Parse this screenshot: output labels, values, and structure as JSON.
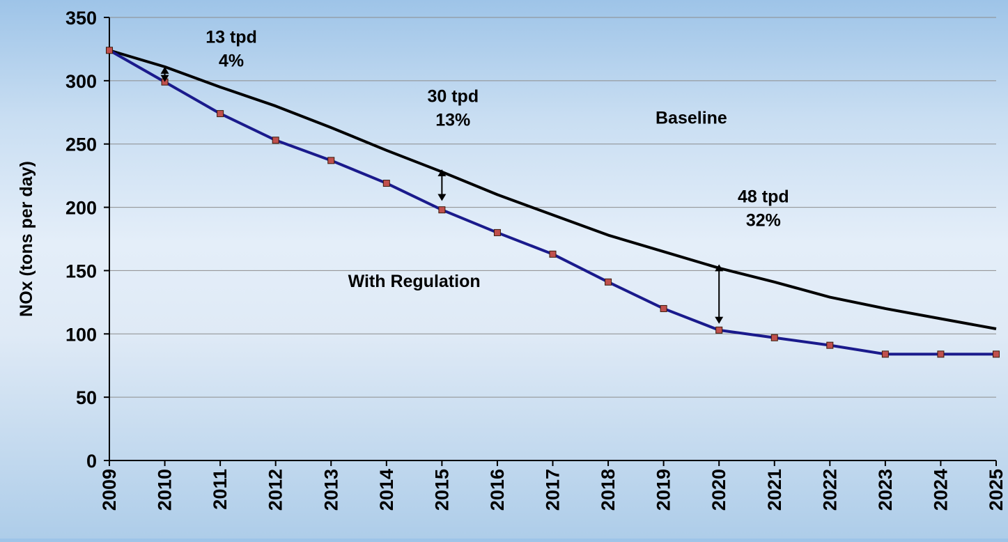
{
  "chart_data": {
    "type": "line",
    "title": "",
    "xlabel": "",
    "ylabel": "NOx (tons per day)",
    "ylim": [
      0,
      350
    ],
    "yticks": [
      0,
      50,
      100,
      150,
      200,
      250,
      300,
      350
    ],
    "x": [
      "2009",
      "2010",
      "2011",
      "2012",
      "2013",
      "2014",
      "2015",
      "2016",
      "2017",
      "2018",
      "2019",
      "2020",
      "2021",
      "2022",
      "2023",
      "2024",
      "2025"
    ],
    "grid": true,
    "series": [
      {
        "name": "Baseline",
        "color": "#000000",
        "markers": false,
        "values": [
          324,
          311,
          295,
          280,
          263,
          245,
          228,
          210,
          194,
          178,
          165,
          152,
          141,
          129,
          120,
          112,
          104
        ]
      },
      {
        "name": "With Regulation",
        "color": "#1a1a8c",
        "marker_color": "#c0504d",
        "markers": true,
        "values": [
          324,
          299,
          274,
          253,
          237,
          219,
          198,
          180,
          163,
          141,
          120,
          103,
          97,
          91,
          84,
          84,
          84
        ]
      }
    ],
    "annotations": [
      {
        "id": "a2010",
        "lines": [
          "13 tpd",
          "4%"
        ],
        "x": "2010",
        "label_x": "2011.2",
        "label_y": 330,
        "arrow_from": 311,
        "arrow_to": 299
      },
      {
        "id": "a2015",
        "lines": [
          "30 tpd",
          "13%"
        ],
        "x": "2015",
        "label_x": "2015.2",
        "label_y": 283,
        "arrow_from": 230,
        "arrow_to": 205
      },
      {
        "id": "a2020",
        "lines": [
          "48 tpd",
          "32%"
        ],
        "x": "2020",
        "label_x": "2020.8",
        "label_y": 204,
        "arrow_from": 155,
        "arrow_to": 108
      }
    ],
    "series_labels": [
      {
        "text": "Baseline",
        "x": "2019.5",
        "y": 266
      },
      {
        "text": "With Regulation",
        "x": "2014.5",
        "y": 137
      }
    ]
  }
}
